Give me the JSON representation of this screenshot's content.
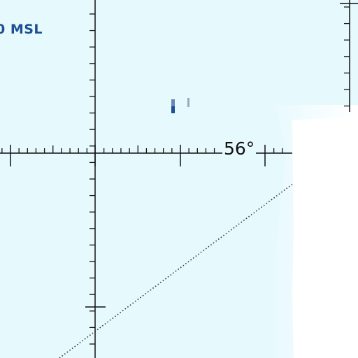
{
  "map": {
    "msl_label": "0 MSL",
    "latitude_label": "56°"
  },
  "colors": {
    "water": "#e6f9fd",
    "land": "#ffffff",
    "grid": "#111111",
    "label_blue": "#1c4f94"
  }
}
